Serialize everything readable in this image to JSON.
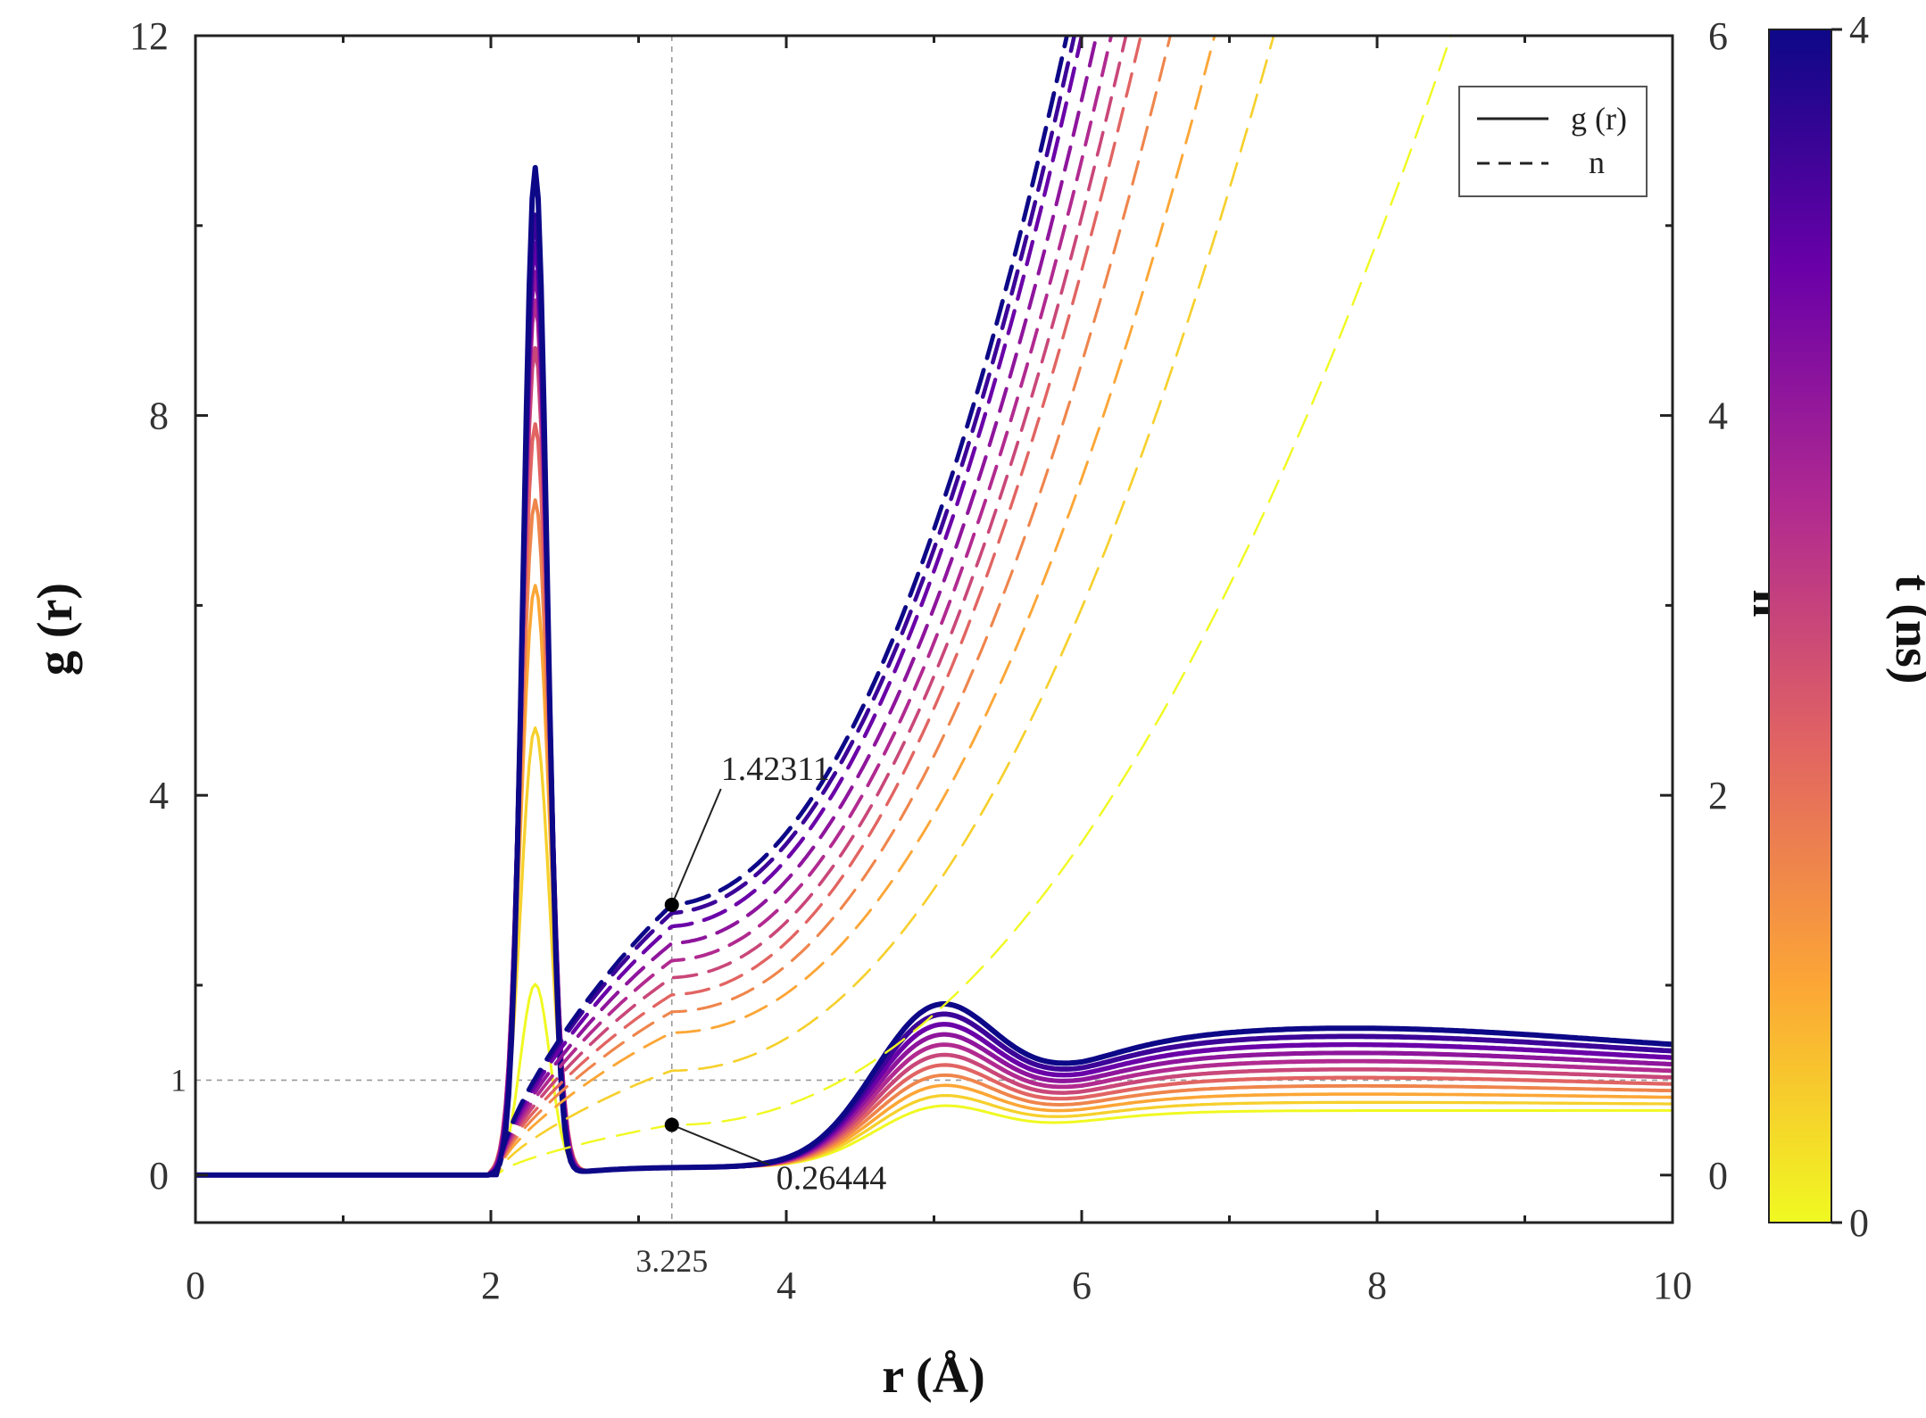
{
  "chart_data": {
    "type": "line",
    "xlabel": "r (Å)",
    "ylabel_left": "g (r)",
    "ylabel_right": "n",
    "colorbar_label": "t (ns)",
    "xlim": [
      0,
      10
    ],
    "ylim_left": [
      -0.5,
      12
    ],
    "ylim_right": [
      -0.25,
      6
    ],
    "x_ticks": [
      0,
      2,
      4,
      6,
      8,
      10
    ],
    "y_left_ticks": [
      0,
      4,
      8,
      12
    ],
    "y_left_ref_tick": 1,
    "y_right_ticks": [
      0,
      2,
      4,
      6
    ],
    "colorbar_ticks": [
      0,
      4
    ],
    "colorbar_colors": [
      "#f0f921",
      "#fca636",
      "#e16462",
      "#b12a90",
      "#6a00a8",
      "#0d0887"
    ],
    "reference_lines": {
      "vertical_x": 3.225,
      "vertical_label": "3.225",
      "horizontal_y": 1,
      "horizontal_label": "1"
    },
    "legend": [
      {
        "style": "solid",
        "label": "g (r)"
      },
      {
        "style": "dashed",
        "label": "n"
      }
    ],
    "annotations": [
      {
        "label": "1.42311",
        "x": 3.225,
        "y_right": 1.42311
      },
      {
        "label": "0.26444",
        "x": 3.225,
        "y_right": 0.26444
      }
    ],
    "series_t_ns": [
      0,
      0.4,
      0.8,
      1.2,
      1.6,
      2.0,
      2.4,
      2.8,
      3.2,
      3.6,
      4.0
    ],
    "gr_peak_heights": [
      2.0,
      4.7,
      6.2,
      7.1,
      7.9,
      8.7,
      9.2,
      9.5,
      9.8,
      10.1,
      10.6
    ],
    "gr_first_peak_r": 2.3,
    "gr_second_peak_r": 5.0,
    "n_at_3_225": [
      0.26444,
      0.55,
      0.75,
      0.86,
      0.95,
      1.04,
      1.13,
      1.22,
      1.31,
      1.38,
      1.42311
    ],
    "r_where_n_reaches_6": [
      8.5,
      7.3,
      6.9,
      6.6,
      6.4,
      6.3,
      6.2,
      6.1,
      6.0,
      5.95,
      5.9
    ]
  }
}
